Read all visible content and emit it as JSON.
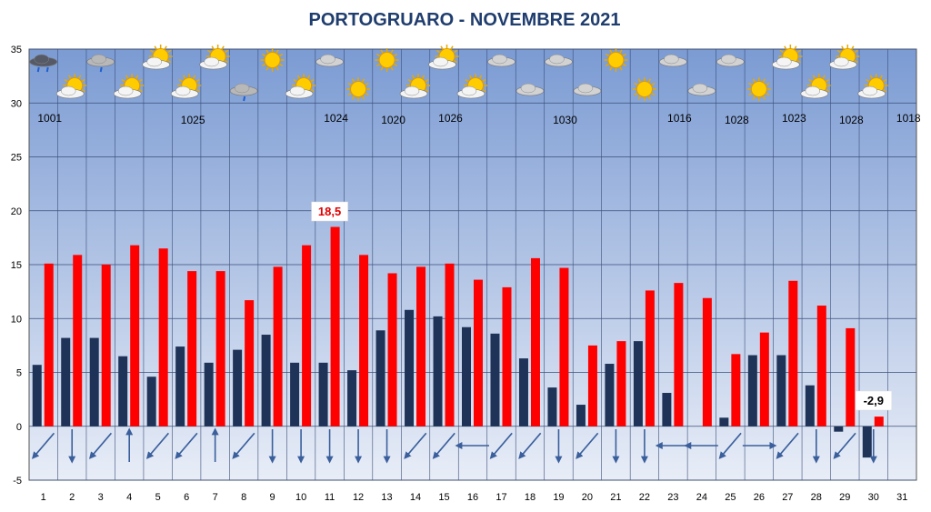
{
  "chart_data": {
    "type": "bar",
    "title": "PORTOGRUARO - NOVEMBRE 2021",
    "ylim": [
      -5,
      35
    ],
    "yticks": [
      -5,
      0,
      5,
      10,
      15,
      20,
      25,
      30,
      35
    ],
    "grid": true,
    "categories": [
      "1",
      "2",
      "3",
      "4",
      "5",
      "6",
      "7",
      "8",
      "9",
      "10",
      "11",
      "12",
      "13",
      "14",
      "15",
      "16",
      "17",
      "18",
      "19",
      "20",
      "21",
      "22",
      "23",
      "24",
      "25",
      "26",
      "27",
      "28",
      "29",
      "30",
      "31"
    ],
    "series": [
      {
        "color": "#1f3358",
        "values": [
          5.7,
          8.2,
          8.2,
          6.5,
          4.6,
          7.4,
          5.9,
          7.1,
          8.5,
          5.9,
          5.9,
          5.2,
          8.9,
          10.8,
          10.2,
          9.2,
          8.6,
          6.3,
          3.6,
          2.0,
          5.8,
          7.9,
          3.1,
          null,
          0.8,
          6.6,
          6.6,
          3.8,
          -0.5,
          -2.9,
          null
        ]
      },
      {
        "color": "#ff0000",
        "values": [
          15.1,
          15.9,
          15.0,
          16.8,
          16.5,
          14.4,
          14.4,
          11.7,
          14.8,
          16.8,
          18.5,
          15.9,
          14.2,
          14.8,
          15.1,
          13.6,
          12.9,
          15.6,
          14.7,
          7.5,
          7.9,
          12.6,
          13.3,
          11.9,
          6.7,
          8.7,
          13.5,
          11.2,
          9.1,
          0.9,
          null
        ]
      }
    ],
    "annotations": [
      {
        "text": "18,5",
        "day": 11
      },
      {
        "text": "-2,9",
        "day": 30
      }
    ],
    "pressure_labels": [
      {
        "day": 1,
        "text": "1001"
      },
      {
        "day": 6,
        "text": "1025"
      },
      {
        "day": 11,
        "text": "1024"
      },
      {
        "day": 13,
        "text": "1020"
      },
      {
        "day": 15,
        "text": "1026"
      },
      {
        "day": 19,
        "text": "1030"
      },
      {
        "day": 23,
        "text": "1016"
      },
      {
        "day": 25,
        "text": "1028"
      },
      {
        "day": 27,
        "text": "1023"
      },
      {
        "day": 29,
        "text": "1028"
      },
      {
        "day": 31,
        "text": "1018"
      }
    ],
    "weather_icons": [
      "storm-cloud-icon",
      "partly-cloudy-icon",
      "rain-cloud-icon",
      "partly-cloudy-icon",
      "partly-cloudy-icon",
      "partly-cloudy-icon",
      "partly-cloudy-icon",
      "rain-cloud-icon",
      "sun-icon",
      "partly-cloudy-icon",
      "cloud-icon",
      "sun-icon",
      "sun-icon",
      "partly-cloudy-icon",
      "partly-cloudy-icon",
      "partly-cloudy-icon",
      "cloud-icon",
      "cloud-icon",
      "cloud-icon",
      "cloud-icon",
      "sun-icon",
      "sun-icon",
      "cloud-icon",
      "cloud-icon",
      "cloud-icon",
      "sun-icon",
      "partly-cloudy-icon",
      "partly-cloudy-icon",
      "partly-cloudy-icon",
      "partly-cloudy-icon"
    ],
    "wind_arrow_directions": [
      "SW",
      "S",
      "SW",
      "N",
      "SW",
      "SW",
      "N",
      "SW",
      "S",
      "S",
      "S",
      "S",
      "S",
      "SW",
      "SW",
      "W",
      "SW",
      "SW",
      "S",
      "SW",
      "S",
      "S",
      "W",
      "W",
      "SW",
      "E",
      "SW",
      "S",
      "SW",
      "S"
    ],
    "colors": {
      "background_top": "#7f9fd6",
      "background_bottom": "#e6ecf6",
      "arrow": "#3a5f9c",
      "grid": "#3a4f7a"
    }
  }
}
